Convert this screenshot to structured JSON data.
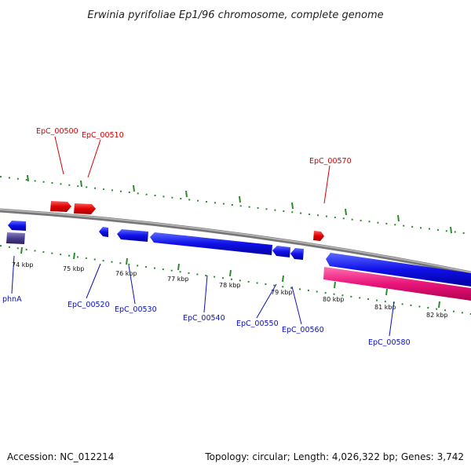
{
  "title": "Erwinia pyrifoliae Ep1/96 chromosome, complete genome",
  "footer": {
    "accession": "Accession: NC_012214",
    "summary": "Topology: circular; Length: 4,026,322 bp; Genes: 3,742"
  },
  "scale_labels": [
    "74 kbp",
    "75 kbp",
    "76 kbp",
    "77 kbp",
    "78 kbp",
    "79 kbp",
    "80 kbp",
    "81 kbp",
    "82 kbp"
  ],
  "genes_forward": [
    "EpC_00500",
    "EpC_00510",
    "EpC_00570"
  ],
  "genes_reverse": [
    "phnA",
    "EpC_00520",
    "EpC_00530",
    "EpC_00540",
    "EpC_00550",
    "EpC_00560",
    "EpC_00580"
  ],
  "colors": {
    "forward_cds": "#e00000",
    "reverse_cds": "#1010e8",
    "backbone": "#888888",
    "ticks": "#2a8a2a",
    "rna_feature": "#e8157a",
    "other_feature": "#4a3f8c"
  }
}
